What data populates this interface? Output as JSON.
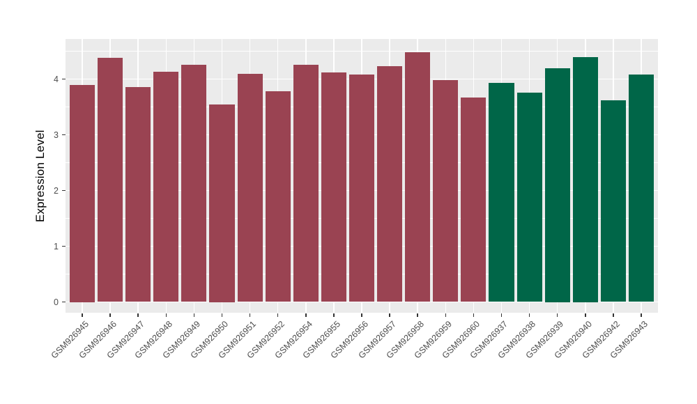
{
  "chart_data": {
    "type": "bar",
    "title": "",
    "xlabel": "",
    "ylabel": "Expression Level",
    "categories": [
      "GSM926945",
      "GSM926946",
      "GSM926947",
      "GSM926948",
      "GSM926949",
      "GSM926950",
      "GSM926951",
      "GSM926952",
      "GSM926954",
      "GSM926955",
      "GSM926956",
      "GSM926957",
      "GSM926958",
      "GSM926959",
      "GSM926960",
      "GSM926937",
      "GSM926938",
      "GSM926939",
      "GSM926940",
      "GSM926942",
      "GSM926943"
    ],
    "values": [
      3.9,
      4.38,
      3.86,
      4.13,
      4.26,
      3.55,
      4.09,
      3.78,
      4.26,
      4.12,
      4.08,
      4.23,
      4.48,
      3.98,
      3.67,
      3.93,
      3.76,
      4.2,
      4.4,
      3.62,
      4.08
    ],
    "bar_colors": [
      "#9A4352",
      "#9A4352",
      "#9A4352",
      "#9A4352",
      "#9A4352",
      "#9A4352",
      "#9A4352",
      "#9A4352",
      "#9A4352",
      "#9A4352",
      "#9A4352",
      "#9A4352",
      "#9A4352",
      "#9A4352",
      "#9A4352",
      "#006648",
      "#006648",
      "#006648",
      "#006648",
      "#006648",
      "#006648"
    ],
    "group_colors": {
      "left_group": "#9A4352",
      "right_group": "#006648"
    },
    "yticks": [
      0,
      1,
      2,
      3,
      4
    ],
    "ylim": [
      -0.19,
      4.72
    ],
    "grid": true,
    "minor_grid": true,
    "legend_position": "none",
    "panel_bg": "#EBEBEB",
    "grid_color": "#FFFFFF",
    "tick_color": "#333333",
    "axis_text_color": "#4D4D4D",
    "x_label_angle_deg": 45
  }
}
